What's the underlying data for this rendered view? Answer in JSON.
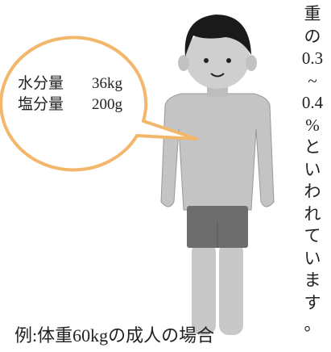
{
  "bubble": {
    "rows": [
      {
        "label": "水分量",
        "value": "36kg"
      },
      {
        "label": "塩分量",
        "value": "200g"
      }
    ]
  },
  "caption": "例:体重60kgの成人の場合",
  "side_text": [
    "重",
    "の",
    "0.3",
    "~",
    "0.4",
    "%",
    "と",
    "い",
    "わ",
    "れ",
    "て",
    "い",
    "ま",
    "す",
    "。"
  ]
}
